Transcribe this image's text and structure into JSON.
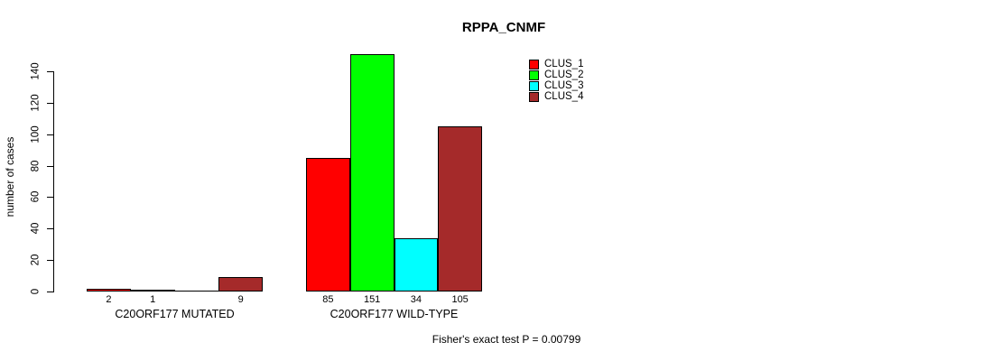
{
  "chart_data": {
    "type": "bar",
    "title": "RPPA_CNMF",
    "xlabel": "",
    "ylabel": "number of cases",
    "ylim": [
      0,
      140
    ],
    "yticks": [
      0,
      20,
      40,
      60,
      80,
      100,
      120,
      140
    ],
    "grid": false,
    "categories": [
      "C20ORF177 MUTATED",
      "C20ORF177 WILD-TYPE"
    ],
    "series": [
      {
        "name": "CLUS_1",
        "color": "#ff0000",
        "values": [
          2,
          85
        ]
      },
      {
        "name": "CLUS_2",
        "color": "#00ff00",
        "values": [
          1,
          151
        ]
      },
      {
        "name": "CLUS_3",
        "color": "#00ffff",
        "values": [
          0,
          34
        ]
      },
      {
        "name": "CLUS_4",
        "color": "#a52a2a",
        "values": [
          9,
          105
        ]
      }
    ],
    "bar_value_labels": [
      [
        "2",
        "1",
        "",
        "9"
      ],
      [
        "85",
        "151",
        "34",
        "105"
      ]
    ],
    "legend_position": "top-right",
    "legend_entries": [
      "CLUS_1",
      "CLUS_2",
      "CLUS_3",
      "CLUS_4"
    ],
    "annotation": "Fisher's exact test P = 0.00799"
  },
  "colors": {
    "background": "#ffffff",
    "axis": "#000000",
    "clus_1": "#ff0000",
    "clus_2": "#00ff00",
    "clus_3": "#00ffff",
    "clus_4": "#a52a2a"
  }
}
